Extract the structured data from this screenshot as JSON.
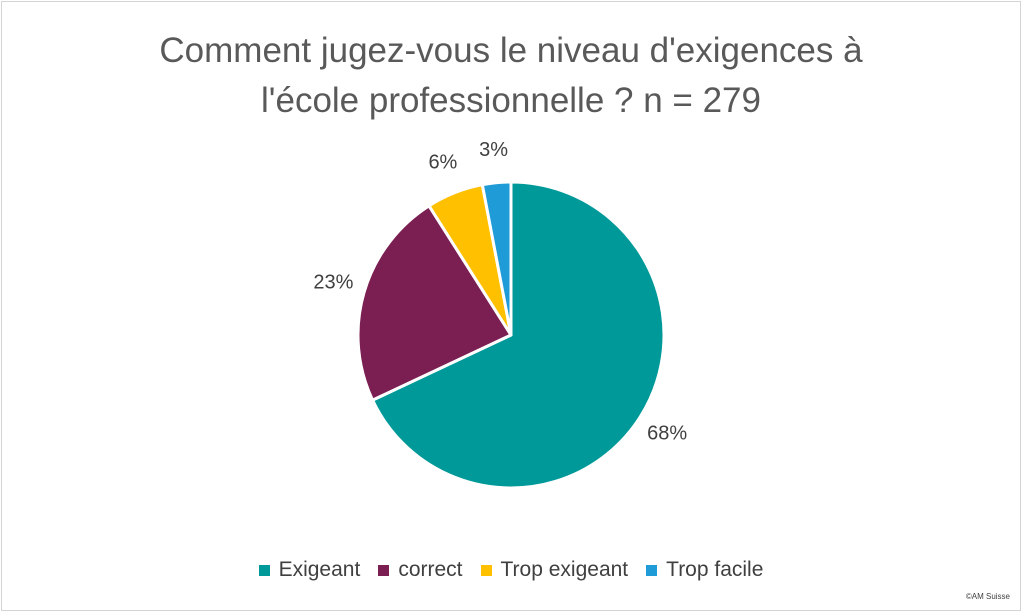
{
  "chart_data": {
    "type": "pie",
    "title_lines": [
      "Comment jugez-vous le niveau d'exigences à",
      "l'école professionnelle ? n = 279"
    ],
    "slices": [
      {
        "label": "Exigeant",
        "value": 68,
        "display": "68%",
        "color": "#009999"
      },
      {
        "label": "correct",
        "value": 23,
        "display": "23%",
        "color": "#7b1e52"
      },
      {
        "label": "Trop exigeant",
        "value": 6,
        "display": "6%",
        "color": "#ffc000"
      },
      {
        "label": "Trop facile",
        "value": 3,
        "display": "3%",
        "color": "#1f9bd7"
      }
    ],
    "legend_position": "bottom"
  },
  "credit": "©AM Suisse"
}
